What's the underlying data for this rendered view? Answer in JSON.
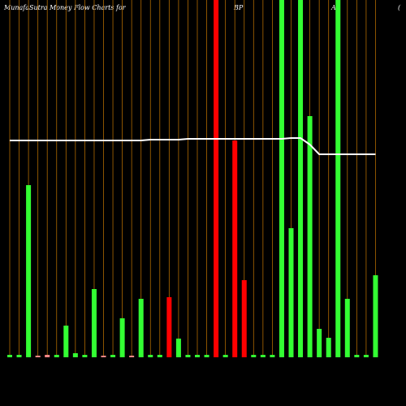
{
  "chart_data": {
    "type": "bar",
    "title": "MunafaSutra  Money Flow  Charts for",
    "ticker": "BP",
    "extra": "A",
    "extra2": "(",
    "categories": [
      null,
      null,
      null,
      null,
      null,
      null,
      null,
      null,
      null,
      null,
      null,
      null,
      null,
      null,
      null,
      null,
      null,
      null,
      null,
      null,
      null,
      null,
      null,
      null,
      null,
      null,
      null,
      null,
      null,
      null,
      null,
      null,
      null,
      null,
      null,
      null,
      null,
      null,
      null,
      null
    ],
    "values": [
      3,
      3,
      212,
      2,
      3,
      3,
      39,
      5,
      3,
      84,
      2,
      3,
      48,
      2,
      72,
      3,
      3,
      74,
      23,
      3,
      3,
      3,
      440,
      3,
      267,
      95,
      3,
      3,
      3,
      440,
      159,
      440,
      297,
      35,
      24,
      440,
      72,
      3,
      3,
      101
    ],
    "colors": [
      "#33ff33",
      "#33ff33",
      "#33ff33",
      "#ff8888",
      "#ff8888",
      "#33ff33",
      "#33ff33",
      "#33ff33",
      "#33ff33",
      "#33ff33",
      "#ff8888",
      "#33ff33",
      "#33ff33",
      "#ff8888",
      "#33ff33",
      "#33ff33",
      "#33ff33",
      "#ff0000",
      "#33ff33",
      "#33ff33",
      "#33ff33",
      "#33ff33",
      "#ff0000",
      "#33ff33",
      "#ff0000",
      "#ff0000",
      "#33ff33",
      "#33ff33",
      "#33ff33",
      "#33ff33",
      "#33ff33",
      "#33ff33",
      "#33ff33",
      "#33ff33",
      "#33ff33",
      "#33ff33",
      "#33ff33",
      "#33ff33",
      "#33ff33",
      "#33ff33"
    ],
    "line_values": [
      267,
      267,
      267,
      267,
      267,
      267,
      267,
      267,
      267,
      267,
      267,
      267,
      267,
      267,
      267,
      268,
      268,
      268,
      268,
      269,
      269,
      269,
      269,
      269,
      269,
      269,
      269,
      269,
      269,
      269,
      270,
      270,
      262,
      250,
      250,
      250,
      250,
      250,
      250,
      250
    ],
    "line_color": "#ffffff",
    "grid_color": "#b06a00",
    "ylim": [
      0,
      440
    ]
  }
}
